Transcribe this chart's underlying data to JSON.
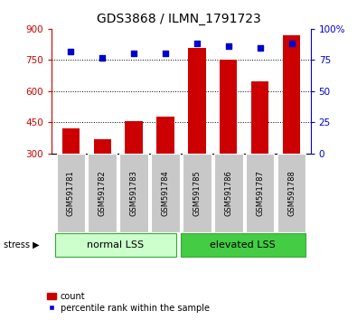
{
  "title": "GDS3868 / ILMN_1791723",
  "samples": [
    "GSM591781",
    "GSM591782",
    "GSM591783",
    "GSM591784",
    "GSM591785",
    "GSM591786",
    "GSM591787",
    "GSM591788"
  ],
  "counts": [
    420,
    368,
    455,
    480,
    810,
    750,
    648,
    870
  ],
  "percentiles": [
    82,
    77,
    80,
    80,
    88,
    86,
    85,
    88
  ],
  "baseline": 300,
  "ylim_left": [
    300,
    900
  ],
  "ylim_right": [
    0,
    100
  ],
  "yticks_left": [
    300,
    450,
    600,
    750,
    900
  ],
  "yticks_right": [
    0,
    25,
    50,
    75,
    100
  ],
  "grid_values": [
    450,
    600,
    750
  ],
  "bar_color": "#cc0000",
  "dot_color": "#0000cc",
  "group_labels": [
    "normal LSS",
    "elevated LSS"
  ],
  "group_color_normal": "#ccffcc",
  "group_color_elevated": "#44cc44",
  "stress_label": "stress",
  "legend_bar_label": "count",
  "legend_dot_label": "percentile rank within the sample",
  "title_fontsize": 10,
  "tick_fontsize": 7.5,
  "sample_fontsize": 6,
  "group_fontsize": 8,
  "legend_fontsize": 7,
  "yaxis_left_color": "#cc0000",
  "yaxis_right_color": "#0000cc",
  "gray_box_color": "#c8c8c8"
}
